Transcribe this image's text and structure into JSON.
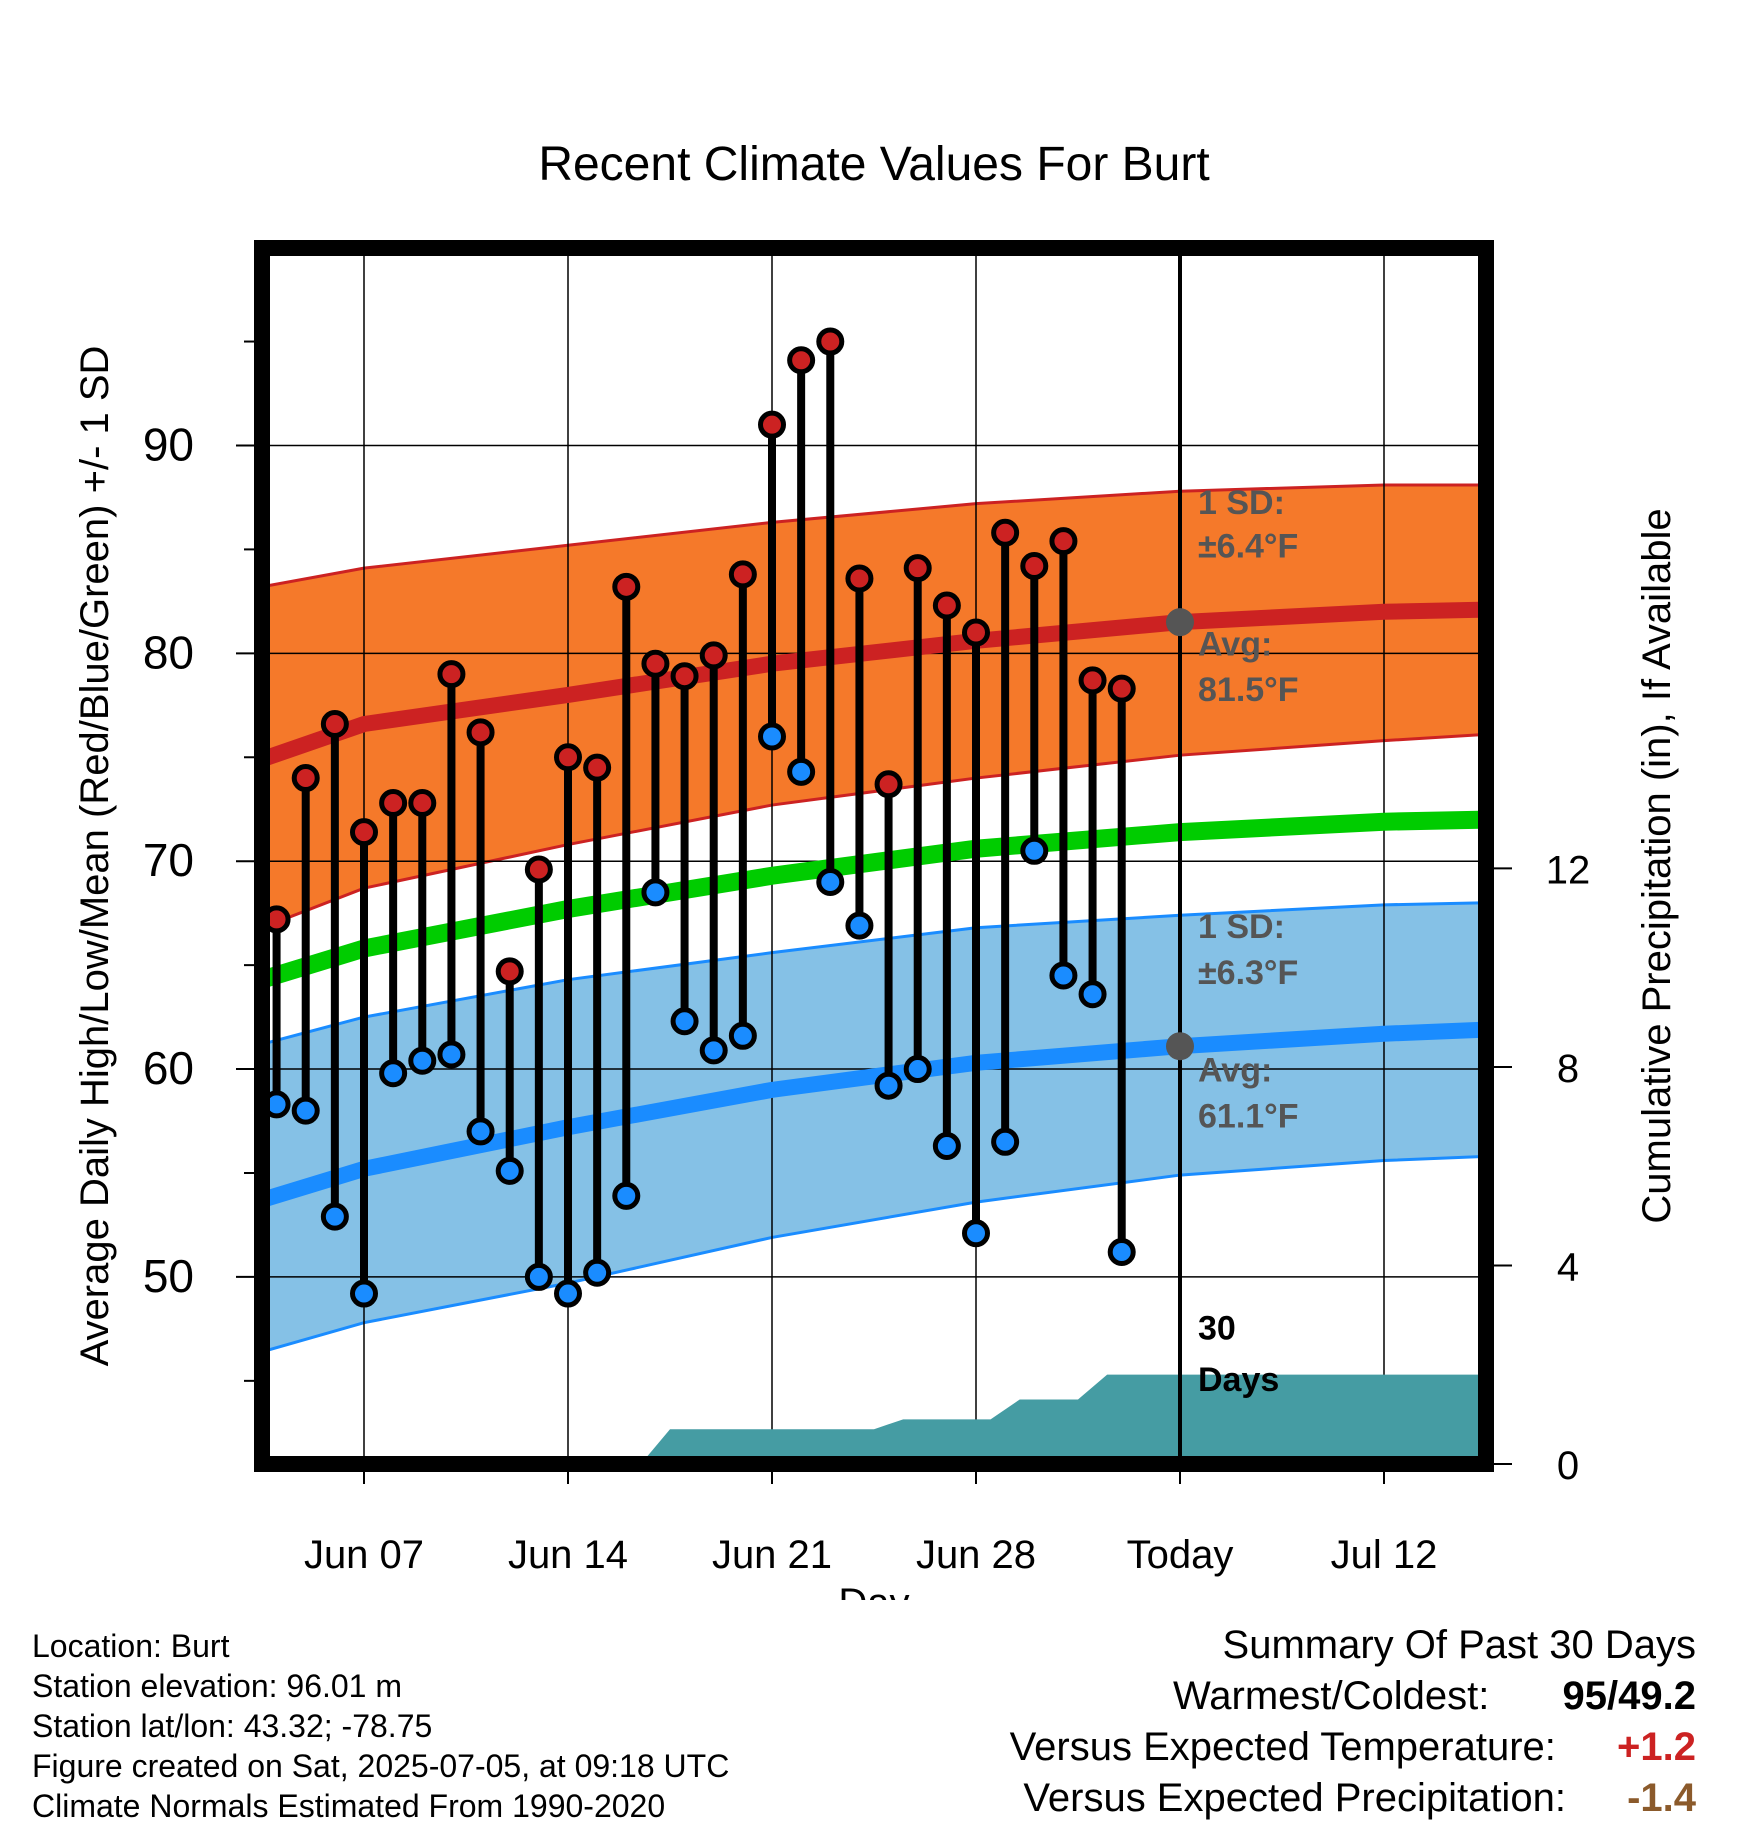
{
  "chart_data": {
    "type": "line",
    "title": "Recent Climate Values For Burt",
    "xlabel": "Day",
    "ylabel": "Average Daily High/Low/Mean (Red/Blue/Green) +/- 1 SD",
    "y2label": "Cumulative Precipitation (in), If Available",
    "x_ticks": [
      "Jun 07",
      "Jun 14",
      "Jun 21",
      "Jun 28",
      "Today",
      "Jul 12"
    ],
    "y_ticks": [
      50,
      60,
      70,
      80,
      90
    ],
    "y2_ticks": [
      0,
      4,
      8,
      12
    ],
    "ylim": [
      41,
      99.5
    ],
    "y2lim": [
      0,
      24.5
    ],
    "x_range_days": [
      "2025-06-03 12:00",
      "2025-07-15 12:00"
    ],
    "daily": {
      "dates": [
        "2025-06-04",
        "2025-06-05",
        "2025-06-06",
        "2025-06-07",
        "2025-06-08",
        "2025-06-09",
        "2025-06-10",
        "2025-06-11",
        "2025-06-12",
        "2025-06-13",
        "2025-06-14",
        "2025-06-15",
        "2025-06-16",
        "2025-06-17",
        "2025-06-18",
        "2025-06-19",
        "2025-06-20",
        "2025-06-21",
        "2025-06-22",
        "2025-06-23",
        "2025-06-24",
        "2025-06-25",
        "2025-06-26",
        "2025-06-27",
        "2025-06-28",
        "2025-06-29",
        "2025-06-30",
        "2025-07-01",
        "2025-07-02",
        "2025-07-03",
        "2025-07-04"
      ],
      "high": [
        67.2,
        74.0,
        76.6,
        71.4,
        72.8,
        72.8,
        79.0,
        76.2,
        64.7,
        69.6,
        75.0,
        74.5,
        83.2,
        79.5,
        78.9,
        79.9,
        83.8,
        91.0,
        94.1,
        95.0,
        83.6,
        73.7,
        84.1,
        82.3,
        81.0,
        85.8,
        84.2,
        85.4,
        78.7,
        78.3,
        null
      ],
      "low": [
        58.3,
        58.0,
        52.9,
        49.2,
        59.8,
        60.4,
        60.7,
        57.0,
        55.1,
        50.0,
        49.2,
        50.2,
        53.9,
        68.5,
        62.3,
        60.9,
        61.6,
        76.0,
        74.3,
        69.0,
        66.9,
        59.2,
        60.0,
        56.3,
        52.1,
        56.5,
        70.5,
        64.5,
        63.6,
        51.2,
        null
      ],
      "colors": {
        "high": "#cc2222",
        "low": "#1a8cff",
        "stem": "#000000"
      }
    },
    "normals": {
      "dates": [
        "2025-06-03 12:00",
        "2025-06-07",
        "2025-06-14",
        "2025-06-21",
        "2025-06-28",
        "2025-07-05",
        "2025-07-12",
        "2025-07-15 12:00"
      ],
      "high_mean": [
        74.9,
        76.6,
        78.0,
        79.5,
        80.6,
        81.5,
        82.0,
        82.1
      ],
      "high_upper": [
        83.2,
        84.1,
        85.2,
        86.3,
        87.2,
        87.8,
        88.1,
        88.1
      ],
      "high_lower": [
        66.8,
        68.7,
        70.8,
        72.7,
        74.0,
        75.1,
        75.8,
        76.1
      ],
      "mean": [
        64.3,
        65.8,
        67.7,
        69.3,
        70.6,
        71.4,
        71.9,
        72.0
      ],
      "low_mean": [
        53.7,
        55.2,
        57.2,
        59.0,
        60.3,
        61.1,
        61.7,
        61.9
      ],
      "low_upper": [
        61.2,
        62.5,
        64.3,
        65.6,
        66.8,
        67.4,
        67.9,
        68.0
      ],
      "low_lower": [
        46.4,
        47.8,
        49.7,
        51.9,
        53.6,
        54.9,
        55.6,
        55.8
      ],
      "colors": {
        "high_band": "#f5792a",
        "high_mean": "#cc2222",
        "mean": "#00cc00",
        "low_band": "#85c1e6",
        "low_mean": "#1a8cff"
      }
    },
    "precipitation": {
      "dates": [
        "2025-06-03 12:00",
        "2025-06-16 12:00",
        "2025-06-17 12:00",
        "2025-06-24 12:00",
        "2025-06-25 12:00",
        "2025-06-28 12:00",
        "2025-06-29 12:00",
        "2025-07-01 12:00",
        "2025-07-02 12:00",
        "2025-07-15 12:00"
      ],
      "cumulative": [
        0,
        0,
        0.7,
        0.7,
        0.9,
        0.9,
        1.3,
        1.3,
        1.8,
        1.8
      ],
      "color": "#459ca3"
    },
    "today_marker": {
      "date": "2025-07-05",
      "high_avg": 81.5,
      "low_avg": 61.1
    }
  },
  "annotations": {
    "high_sd_line1": "1 SD:",
    "high_sd_line2": "±6.4°F",
    "high_avg_line1": "Avg:",
    "high_avg_line2": "81.5°F",
    "low_sd_line1": "1 SD:",
    "low_sd_line2": "±6.3°F",
    "low_avg_line1": "Avg:",
    "low_avg_line2": "61.1°F",
    "precip_days_line1": "30",
    "precip_days_line2": "Days"
  },
  "footer": {
    "location": "Location: Burt",
    "elevation": "Station elevation: 96.01 m",
    "latlon": "Station lat/lon: 43.32; -78.75",
    "created": "Figure created on Sat, 2025-07-05, at 09:18 UTC",
    "normals": "Climate Normals Estimated From 1990-2020"
  },
  "summary": {
    "title": "Summary Of Past 30 Days",
    "warmest_label": "Warmest/Coldest:",
    "warmest_high": "95",
    "warmest_sep": "/",
    "warmest_low": "49.2",
    "temp_label": "Versus Expected Temperature:",
    "temp_value": "+1.2",
    "temp_color": "#cc2222",
    "precip_label": "Versus Expected Precipitation:",
    "precip_value": "-1.4",
    "precip_color": "#8b5a2b",
    "high_color": "#cc2222",
    "low_color": "#1a8cff"
  }
}
